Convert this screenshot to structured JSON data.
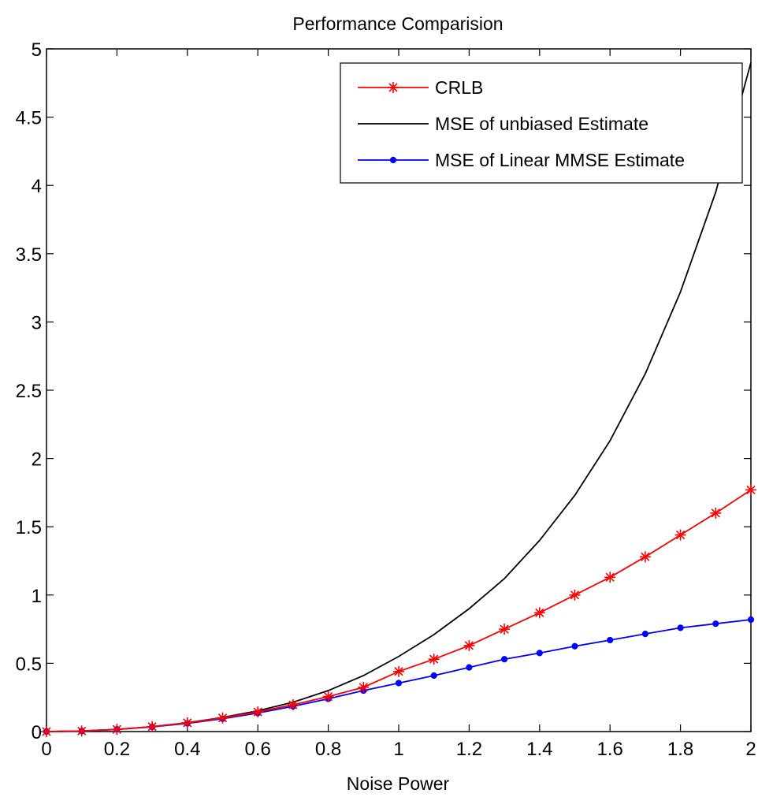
{
  "chart_data": {
    "type": "line",
    "title": "Performance Comparision",
    "xlabel": "Noise Power",
    "ylabel": "",
    "xlim": [
      0,
      2
    ],
    "ylim": [
      0,
      5
    ],
    "xticks": [
      0,
      0.2,
      0.4,
      0.6,
      0.8,
      1,
      1.2,
      1.4,
      1.6,
      1.8,
      2
    ],
    "xtick_labels": [
      "0",
      "0.2",
      "0.4",
      "0.6",
      "0.8",
      "1",
      "1.2",
      "1.4",
      "1.6",
      "1.8",
      "2"
    ],
    "yticks": [
      0,
      0.5,
      1,
      1.5,
      2,
      2.5,
      3,
      3.5,
      4,
      4.5,
      5
    ],
    "ytick_labels": [
      "0",
      "0.5",
      "1",
      "1.5",
      "2",
      "2.5",
      "3",
      "3.5",
      "4",
      "4.5",
      "5"
    ],
    "grid": false,
    "legend_position": "top-right",
    "x": [
      0,
      0.1,
      0.2,
      0.3,
      0.4,
      0.5,
      0.6,
      0.7,
      0.8,
      0.9,
      1.0,
      1.1,
      1.2,
      1.3,
      1.4,
      1.5,
      1.6,
      1.7,
      1.8,
      1.9,
      2.0
    ],
    "series": [
      {
        "name": "CRLB",
        "color": "#ff0000",
        "marker": "asterisk",
        "values": [
          0,
          0.004,
          0.016,
          0.036,
          0.064,
          0.1,
          0.144,
          0.196,
          0.256,
          0.324,
          0.44,
          0.53,
          0.63,
          0.75,
          0.87,
          1.0,
          1.13,
          1.28,
          1.44,
          1.6,
          1.77
        ]
      },
      {
        "name": "MSE of unbiased Estimate",
        "color": "#000000",
        "marker": "none",
        "values": [
          0,
          0.004,
          0.016,
          0.036,
          0.065,
          0.103,
          0.152,
          0.215,
          0.3,
          0.41,
          0.55,
          0.71,
          0.9,
          1.12,
          1.4,
          1.73,
          2.13,
          2.62,
          3.22,
          3.95,
          4.9
        ]
      },
      {
        "name": "MSE of Linear MMSE Estimate",
        "color": "#0000ff",
        "marker": "dot",
        "values": [
          0,
          0.004,
          0.016,
          0.034,
          0.06,
          0.094,
          0.136,
          0.185,
          0.24,
          0.3,
          0.355,
          0.41,
          0.47,
          0.53,
          0.575,
          0.625,
          0.67,
          0.715,
          0.76,
          0.79,
          0.82
        ]
      }
    ]
  }
}
